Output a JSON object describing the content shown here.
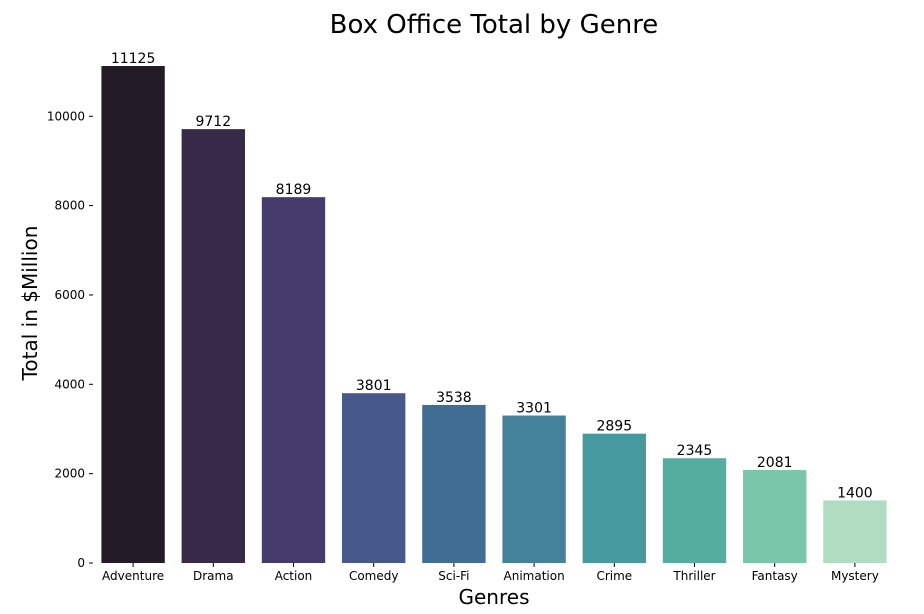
{
  "chart_data": {
    "type": "bar",
    "title": "Box Office Total by Genre",
    "xlabel": "Genres",
    "ylabel": "Total in $Million",
    "categories": [
      "Adventure",
      "Drama",
      "Action",
      "Comedy",
      "Sci-Fi",
      "Animation",
      "Crime",
      "Thriller",
      "Fantasy",
      "Mystery"
    ],
    "values": [
      11125,
      9712,
      8189,
      3801,
      3538,
      3301,
      2895,
      2345,
      2081,
      1400
    ],
    "data_labels": [
      "11125",
      "9712",
      "8189",
      "3801",
      "3538",
      "3301",
      "2895",
      "2345",
      "2081",
      "1400"
    ],
    "colors": [
      "#241b29",
      "#362a48",
      "#453c6c",
      "#46598a",
      "#3f6d94",
      "#43829a",
      "#45999f",
      "#55ad9f",
      "#7ac6aa",
      "#b0dcc2"
    ],
    "yticks": [
      0,
      2000,
      4000,
      6000,
      8000,
      10000
    ],
    "ytick_labels": [
      "0",
      "2000",
      "4000",
      "6000",
      "8000",
      "10000"
    ],
    "ylim": [
      0,
      11125
    ],
    "grid": false,
    "legend": false
  }
}
